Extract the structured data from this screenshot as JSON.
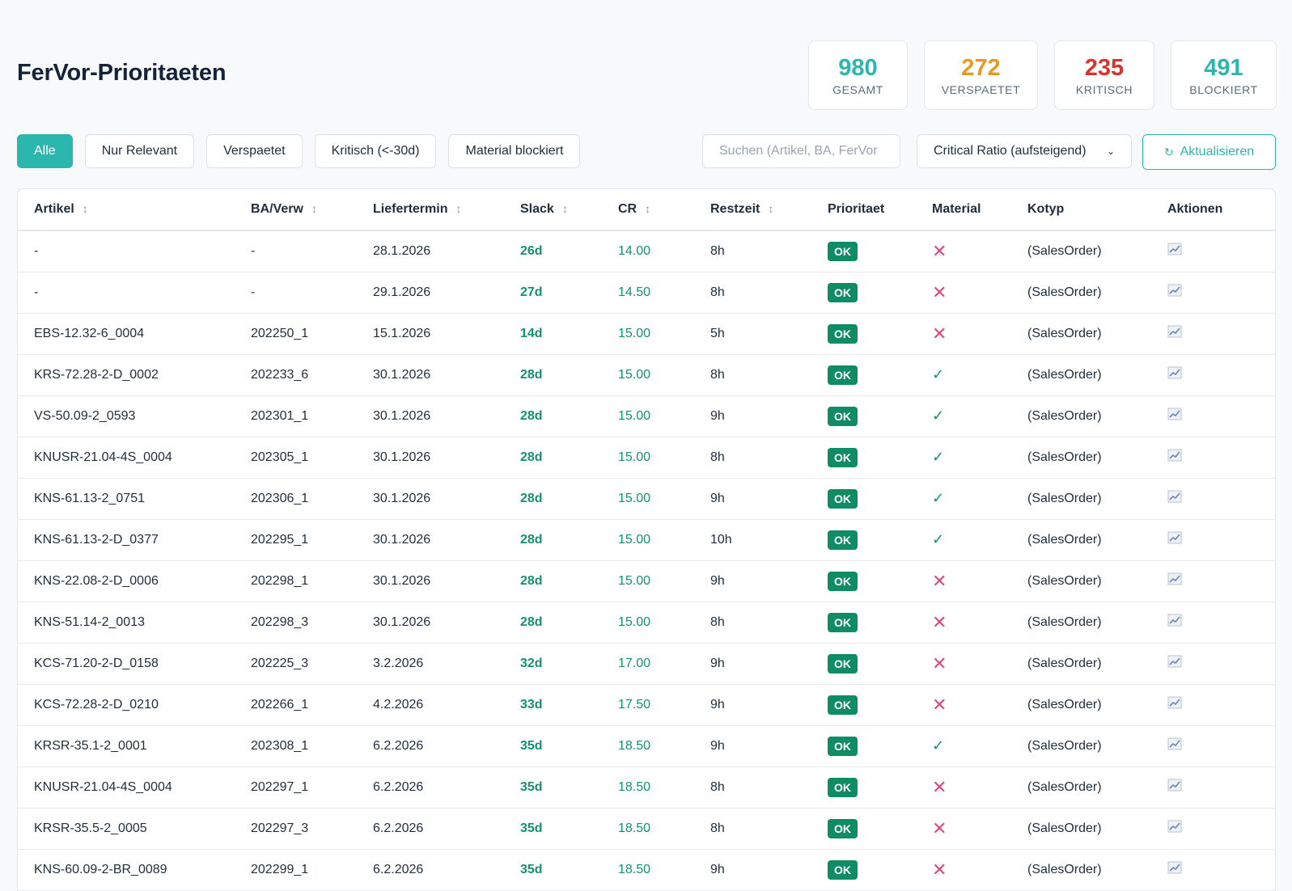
{
  "page": {
    "title": "FerVor-Prioritaeten"
  },
  "stats": [
    {
      "value": "980",
      "label": "GESAMT",
      "color": "#2bb7ae"
    },
    {
      "value": "272",
      "label": "VERSPAETET",
      "color": "#e79a1f"
    },
    {
      "value": "235",
      "label": "KRITISCH",
      "color": "#d8332f"
    },
    {
      "value": "491",
      "label": "BLOCKIERT",
      "color": "#2bb7ae"
    }
  ],
  "filters": [
    "Alle",
    "Nur Relevant",
    "Verspaetet",
    "Kritisch (<-30d)",
    "Material blockiert"
  ],
  "search": {
    "placeholder": "Suchen (Artikel, BA, FerVor",
    "value": ""
  },
  "sort": {
    "selected": "Critical Ratio (aufsteigend)"
  },
  "refresh": {
    "label": "Aktualisieren",
    "icon": "refresh-icon"
  },
  "table": {
    "columns": [
      "Artikel",
      "BA/Verw",
      "Liefertermin",
      "Slack",
      "CR",
      "Restzeit",
      "Prioritaet",
      "Material",
      "Kotyp",
      "Aktionen"
    ],
    "sortable": [
      true,
      true,
      true,
      true,
      true,
      true,
      false,
      false,
      false,
      false
    ],
    "rows": [
      {
        "artikel": "-",
        "ba": "-",
        "termin": "28.1.2026",
        "slack": "26d",
        "cr": "14.00",
        "restzeit": "8h",
        "prio": "OK",
        "material": false,
        "kotyp": "(SalesOrder)"
      },
      {
        "artikel": "-",
        "ba": "-",
        "termin": "29.1.2026",
        "slack": "27d",
        "cr": "14.50",
        "restzeit": "8h",
        "prio": "OK",
        "material": false,
        "kotyp": "(SalesOrder)"
      },
      {
        "artikel": "EBS-12.32-6_0004",
        "ba": "202250_1",
        "termin": "15.1.2026",
        "slack": "14d",
        "cr": "15.00",
        "restzeit": "5h",
        "prio": "OK",
        "material": false,
        "kotyp": "(SalesOrder)"
      },
      {
        "artikel": "KRS-72.28-2-D_0002",
        "ba": "202233_6",
        "termin": "30.1.2026",
        "slack": "28d",
        "cr": "15.00",
        "restzeit": "8h",
        "prio": "OK",
        "material": true,
        "kotyp": "(SalesOrder)"
      },
      {
        "artikel": "VS-50.09-2_0593",
        "ba": "202301_1",
        "termin": "30.1.2026",
        "slack": "28d",
        "cr": "15.00",
        "restzeit": "9h",
        "prio": "OK",
        "material": true,
        "kotyp": "(SalesOrder)"
      },
      {
        "artikel": "KNUSR-21.04-4S_0004",
        "ba": "202305_1",
        "termin": "30.1.2026",
        "slack": "28d",
        "cr": "15.00",
        "restzeit": "8h",
        "prio": "OK",
        "material": true,
        "kotyp": "(SalesOrder)"
      },
      {
        "artikel": "KNS-61.13-2_0751",
        "ba": "202306_1",
        "termin": "30.1.2026",
        "slack": "28d",
        "cr": "15.00",
        "restzeit": "9h",
        "prio": "OK",
        "material": true,
        "kotyp": "(SalesOrder)"
      },
      {
        "artikel": "KNS-61.13-2-D_0377",
        "ba": "202295_1",
        "termin": "30.1.2026",
        "slack": "28d",
        "cr": "15.00",
        "restzeit": "10h",
        "prio": "OK",
        "material": true,
        "kotyp": "(SalesOrder)"
      },
      {
        "artikel": "KNS-22.08-2-D_0006",
        "ba": "202298_1",
        "termin": "30.1.2026",
        "slack": "28d",
        "cr": "15.00",
        "restzeit": "9h",
        "prio": "OK",
        "material": false,
        "kotyp": "(SalesOrder)"
      },
      {
        "artikel": "KNS-51.14-2_0013",
        "ba": "202298_3",
        "termin": "30.1.2026",
        "slack": "28d",
        "cr": "15.00",
        "restzeit": "8h",
        "prio": "OK",
        "material": false,
        "kotyp": "(SalesOrder)"
      },
      {
        "artikel": "KCS-71.20-2-D_0158",
        "ba": "202225_3",
        "termin": "3.2.2026",
        "slack": "32d",
        "cr": "17.00",
        "restzeit": "9h",
        "prio": "OK",
        "material": false,
        "kotyp": "(SalesOrder)"
      },
      {
        "artikel": "KCS-72.28-2-D_0210",
        "ba": "202266_1",
        "termin": "4.2.2026",
        "slack": "33d",
        "cr": "17.50",
        "restzeit": "9h",
        "prio": "OK",
        "material": false,
        "kotyp": "(SalesOrder)"
      },
      {
        "artikel": "KRSR-35.1-2_0001",
        "ba": "202308_1",
        "termin": "6.2.2026",
        "slack": "35d",
        "cr": "18.50",
        "restzeit": "9h",
        "prio": "OK",
        "material": true,
        "kotyp": "(SalesOrder)"
      },
      {
        "artikel": "KNUSR-21.04-4S_0004",
        "ba": "202297_1",
        "termin": "6.2.2026",
        "slack": "35d",
        "cr": "18.50",
        "restzeit": "8h",
        "prio": "OK",
        "material": false,
        "kotyp": "(SalesOrder)"
      },
      {
        "artikel": "KRSR-35.5-2_0005",
        "ba": "202297_3",
        "termin": "6.2.2026",
        "slack": "35d",
        "cr": "18.50",
        "restzeit": "8h",
        "prio": "OK",
        "material": false,
        "kotyp": "(SalesOrder)"
      },
      {
        "artikel": "KNS-60.09-2-BR_0089",
        "ba": "202299_1",
        "termin": "6.2.2026",
        "slack": "35d",
        "cr": "18.50",
        "restzeit": "9h",
        "prio": "OK",
        "material": false,
        "kotyp": "(SalesOrder)"
      }
    ]
  }
}
